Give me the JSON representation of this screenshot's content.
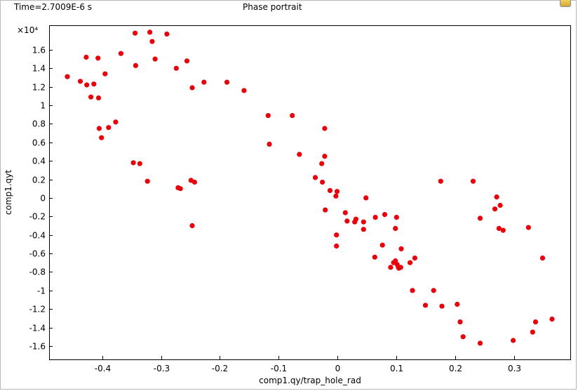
{
  "window": {
    "time_label": "Time=2.7009E-6 s",
    "title": "Phase portrait",
    "corner_icon": "frame-toggle-icon"
  },
  "chart_data": {
    "type": "scatter",
    "title": "Phase portrait",
    "xlabel": "comp1.qy/trap_hole_rad",
    "ylabel": "comp1.qyt",
    "y_multiplier": "×10⁴",
    "xlim": [
      -0.49,
      0.395
    ],
    "ylim": [
      -1.745,
      1.865
    ],
    "x_ticks": [
      -0.4,
      -0.3,
      -0.2,
      -0.1,
      0,
      0.1,
      0.2,
      0.3
    ],
    "x_tick_labels": [
      "-0.4",
      "-0.3",
      "-0.2",
      "-0.1",
      "0",
      "0.1",
      "0.2",
      "0.3"
    ],
    "y_ticks": [
      1.6,
      1.4,
      1.2,
      1,
      0.8,
      0.6,
      0.4,
      0.2,
      0,
      -0.2,
      -0.4,
      -0.6,
      -0.8,
      -1,
      -1.2,
      -1.4,
      -1.6
    ],
    "y_tick_labels": [
      "1.6",
      "1.4",
      "1.2",
      "1",
      "0.8",
      "0.6",
      "0.4",
      "0.2",
      "0",
      "-0.2",
      "-0.4",
      "-0.6",
      "-0.8",
      "-1",
      "-1.2",
      "-1.4",
      "-1.6"
    ],
    "grid": false,
    "marker_color": "#e8000b",
    "points": [
      [
        -0.459,
        1.31
      ],
      [
        -0.437,
        1.26
      ],
      [
        -0.427,
        1.52
      ],
      [
        -0.426,
        1.22
      ],
      [
        -0.419,
        1.09
      ],
      [
        -0.414,
        1.23
      ],
      [
        -0.407,
        1.51
      ],
      [
        -0.406,
        1.08
      ],
      [
        -0.405,
        0.75
      ],
      [
        -0.401,
        0.65
      ],
      [
        -0.395,
        1.34
      ],
      [
        -0.389,
        0.76
      ],
      [
        -0.377,
        0.82
      ],
      [
        -0.368,
        1.56
      ],
      [
        -0.347,
        0.38
      ],
      [
        -0.344,
        1.78
      ],
      [
        -0.343,
        1.43
      ],
      [
        -0.336,
        0.37
      ],
      [
        -0.323,
        0.18
      ],
      [
        -0.319,
        1.79
      ],
      [
        -0.315,
        1.69
      ],
      [
        -0.31,
        1.5
      ],
      [
        -0.29,
        1.77
      ],
      [
        -0.274,
        1.4
      ],
      [
        -0.271,
        0.11
      ],
      [
        -0.267,
        0.1
      ],
      [
        -0.256,
        1.48
      ],
      [
        -0.249,
        0.19
      ],
      [
        -0.247,
        -0.3
      ],
      [
        -0.247,
        1.19
      ],
      [
        -0.243,
        0.17
      ],
      [
        -0.227,
        1.25
      ],
      [
        -0.188,
        1.25
      ],
      [
        -0.159,
        1.16
      ],
      [
        -0.118,
        0.89
      ],
      [
        -0.116,
        0.58
      ],
      [
        -0.077,
        0.89
      ],
      [
        -0.065,
        0.47
      ],
      [
        -0.038,
        0.22
      ],
      [
        -0.027,
        0.37
      ],
      [
        -0.026,
        0.17
      ],
      [
        -0.022,
        0.75
      ],
      [
        -0.022,
        0.45
      ],
      [
        -0.021,
        -0.13
      ],
      [
        -0.013,
        0.08
      ],
      [
        -0.003,
        0.02
      ],
      [
        -0.002,
        -0.4
      ],
      [
        -0.002,
        -0.52
      ],
      [
        -0.001,
        0.07
      ],
      [
        0.013,
        -0.16
      ],
      [
        0.016,
        -0.25
      ],
      [
        0.029,
        -0.26
      ],
      [
        0.031,
        -0.23
      ],
      [
        0.044,
        -0.26
      ],
      [
        0.044,
        -0.34
      ],
      [
        0.048,
        0.0
      ],
      [
        0.063,
        -0.64
      ],
      [
        0.064,
        -0.21
      ],
      [
        0.076,
        -0.51
      ],
      [
        0.08,
        -0.18
      ],
      [
        0.09,
        -0.75
      ],
      [
        0.095,
        -0.7
      ],
      [
        0.098,
        -0.68
      ],
      [
        0.098,
        -0.33
      ],
      [
        0.1,
        -0.21
      ],
      [
        0.101,
        -0.72
      ],
      [
        0.103,
        -0.75
      ],
      [
        0.104,
        -0.76
      ],
      [
        0.107,
        -0.75
      ],
      [
        0.108,
        -0.55
      ],
      [
        0.123,
        -0.7
      ],
      [
        0.127,
        -1.0
      ],
      [
        0.131,
        -0.65
      ],
      [
        0.149,
        -1.16
      ],
      [
        0.163,
        -1.0
      ],
      [
        0.175,
        0.18
      ],
      [
        0.177,
        -1.17
      ],
      [
        0.203,
        -1.15
      ],
      [
        0.208,
        -1.34
      ],
      [
        0.213,
        -1.5
      ],
      [
        0.23,
        0.18
      ],
      [
        0.242,
        -0.22
      ],
      [
        0.242,
        -1.57
      ],
      [
        0.267,
        -0.12
      ],
      [
        0.27,
        0.01
      ],
      [
        0.274,
        -0.33
      ],
      [
        0.276,
        -0.08
      ],
      [
        0.281,
        -0.35
      ],
      [
        0.298,
        -1.54
      ],
      [
        0.324,
        -0.32
      ],
      [
        0.331,
        -1.45
      ],
      [
        0.336,
        -1.34
      ],
      [
        0.348,
        -0.65
      ],
      [
        0.364,
        -1.31
      ]
    ]
  }
}
